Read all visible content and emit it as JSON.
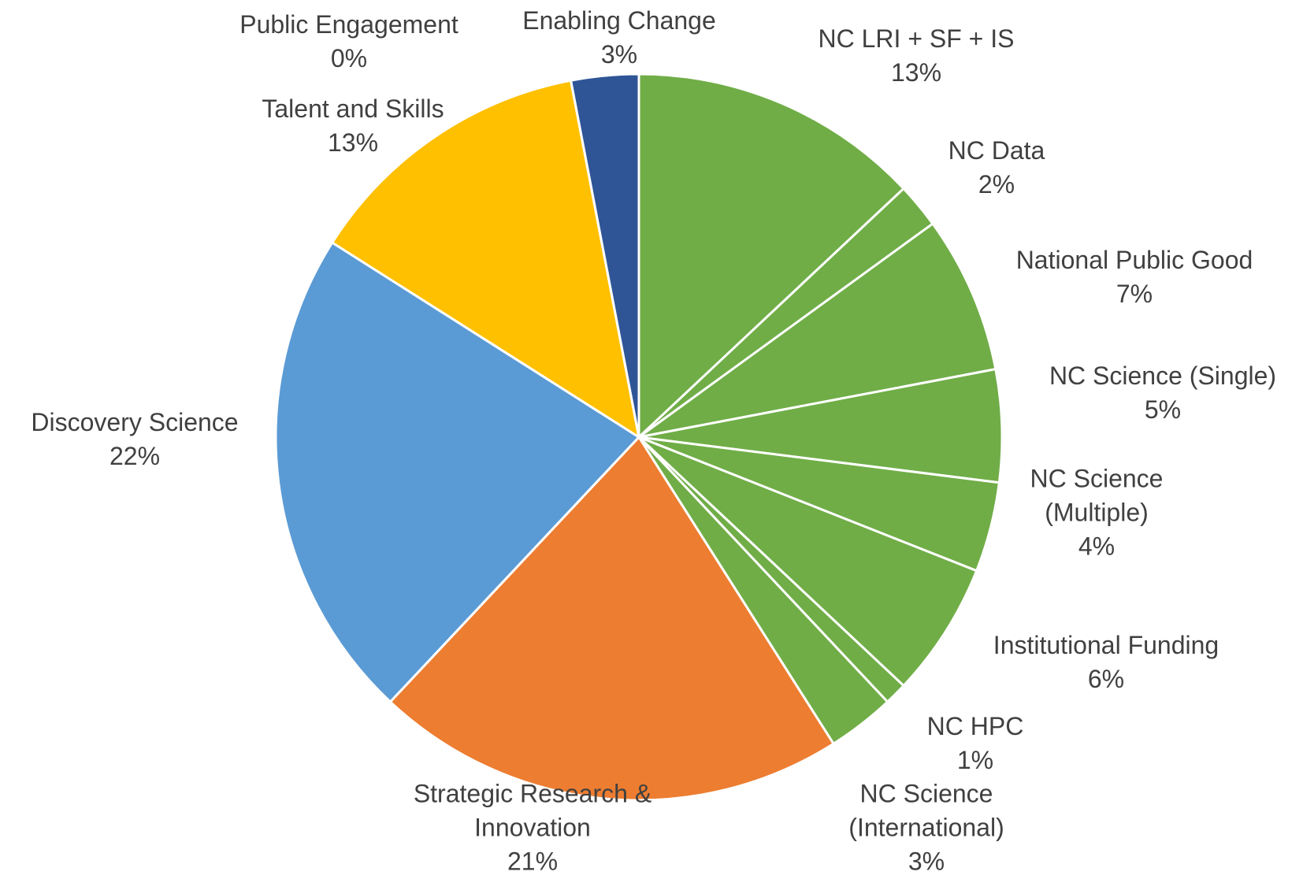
{
  "chart_data": {
    "type": "pie",
    "categories": [
      "NC LRI + SF + IS",
      "NC Data",
      "National Public Good",
      "NC Science (Single)",
      "NC Science (Multiple)",
      "Institutional Funding",
      "NC HPC",
      "NC Science (International)",
      "Strategic Research & Innovation",
      "Discovery Science",
      "Talent and Skills",
      "Public Engagement",
      "Enabling Change"
    ],
    "values": [
      13,
      2,
      7,
      5,
      4,
      6,
      1,
      3,
      21,
      22,
      13,
      0,
      3
    ],
    "value_labels": [
      "13%",
      "2%",
      "7%",
      "5%",
      "4%",
      "6%",
      "1%",
      "3%",
      "21%",
      "22%",
      "13%",
      "0%",
      "3%"
    ],
    "colors": [
      "#70ad47",
      "#70ad47",
      "#70ad47",
      "#70ad47",
      "#70ad47",
      "#70ad47",
      "#70ad47",
      "#70ad47",
      "#ed7d31",
      "#5b9bd5",
      "#ffc000",
      "#c00000",
      "#2f5597"
    ]
  }
}
